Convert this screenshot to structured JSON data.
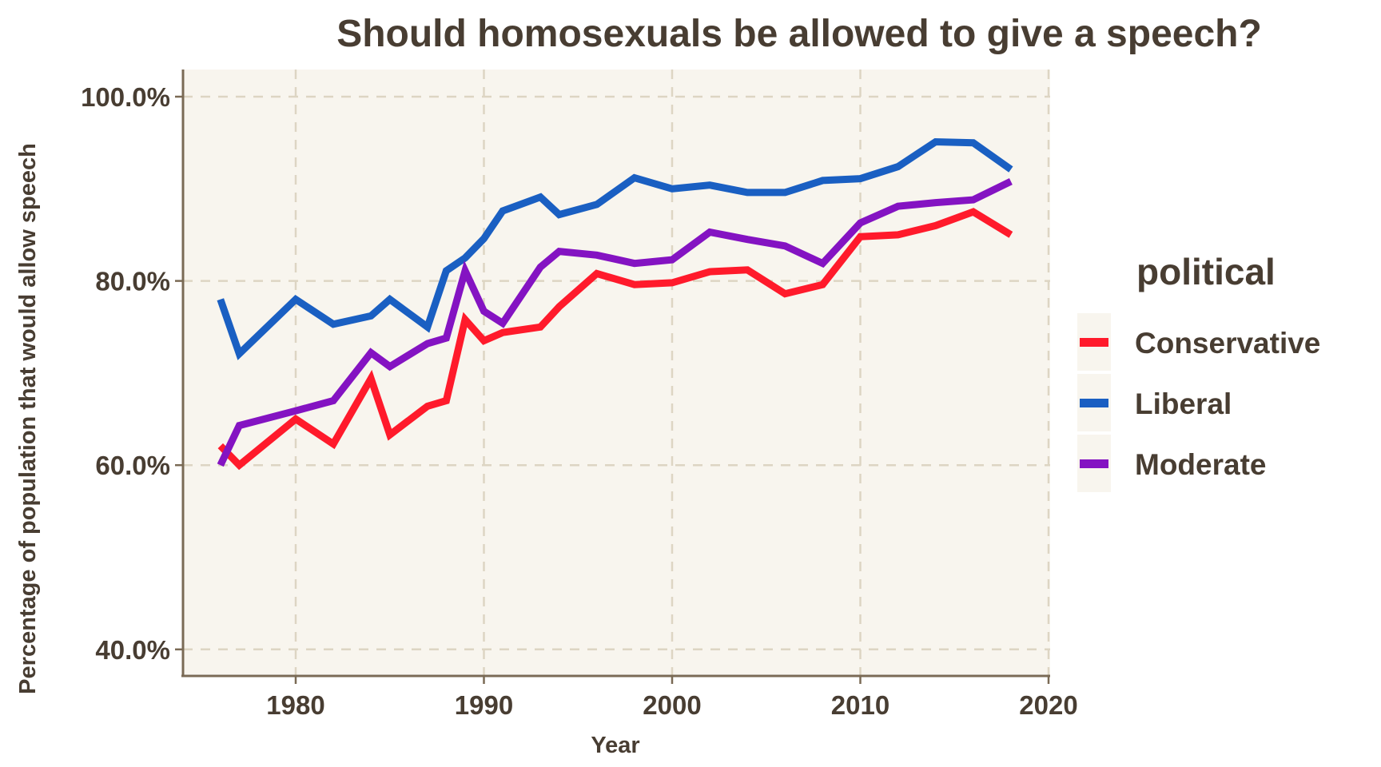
{
  "chart_data": {
    "type": "line",
    "title": "Should homosexuals be allowed to give a speech?",
    "xlabel": "Year",
    "ylabel": "Percentage of population that would allow speech",
    "xlim": [
      1974,
      2020
    ],
    "ylim": [
      37,
      103
    ],
    "x_ticks": [
      1980,
      1990,
      2000,
      2010,
      2020
    ],
    "x_tick_labels": [
      "1980",
      "1990",
      "2000",
      "2010",
      "2020"
    ],
    "y_ticks": [
      40,
      60,
      80,
      100
    ],
    "y_tick_labels": [
      "40.0%",
      "60.0%",
      "80.0%",
      "100.0%"
    ],
    "grid": true,
    "legend": {
      "title": "political",
      "position": "right"
    },
    "x": [
      1976,
      1977,
      1980,
      1982,
      1984,
      1985,
      1987,
      1988,
      1989,
      1990,
      1991,
      1993,
      1994,
      1996,
      1998,
      2000,
      2002,
      2004,
      2006,
      2008,
      2010,
      2012,
      2014,
      2016,
      2018
    ],
    "series": [
      {
        "name": "Conservative",
        "color": "#ff1a2b",
        "values": [
          62.1,
          60.0,
          65.0,
          62.3,
          69.4,
          63.3,
          66.4,
          67.0,
          75.8,
          73.5,
          74.4,
          75.0,
          77.2,
          80.8,
          79.6,
          79.8,
          81.0,
          81.2,
          78.6,
          79.6,
          84.8,
          85.0,
          86.0,
          87.5,
          85.0
        ]
      },
      {
        "name": "Liberal",
        "color": "#1a5fc2",
        "values": [
          78.0,
          72.1,
          78.0,
          75.3,
          76.2,
          78.0,
          75.0,
          81.1,
          82.5,
          84.6,
          87.6,
          89.1,
          87.2,
          88.3,
          91.2,
          90.0,
          90.4,
          89.6,
          89.6,
          90.9,
          91.1,
          92.4,
          95.1,
          95.0,
          92.1
        ]
      },
      {
        "name": "Moderate",
        "color": "#8413c2",
        "values": [
          60.0,
          64.3,
          65.9,
          67.0,
          72.2,
          70.7,
          73.2,
          73.8,
          81.1,
          76.7,
          75.4,
          81.5,
          83.2,
          82.8,
          81.9,
          82.3,
          85.3,
          84.5,
          83.8,
          81.9,
          86.3,
          88.1,
          88.5,
          88.8,
          90.8
        ]
      }
    ]
  },
  "colors": {
    "panel_background": "#f8f5ee",
    "grid": "#ddd5c3",
    "axis": "#7a6a55",
    "text": "#483d32"
  }
}
